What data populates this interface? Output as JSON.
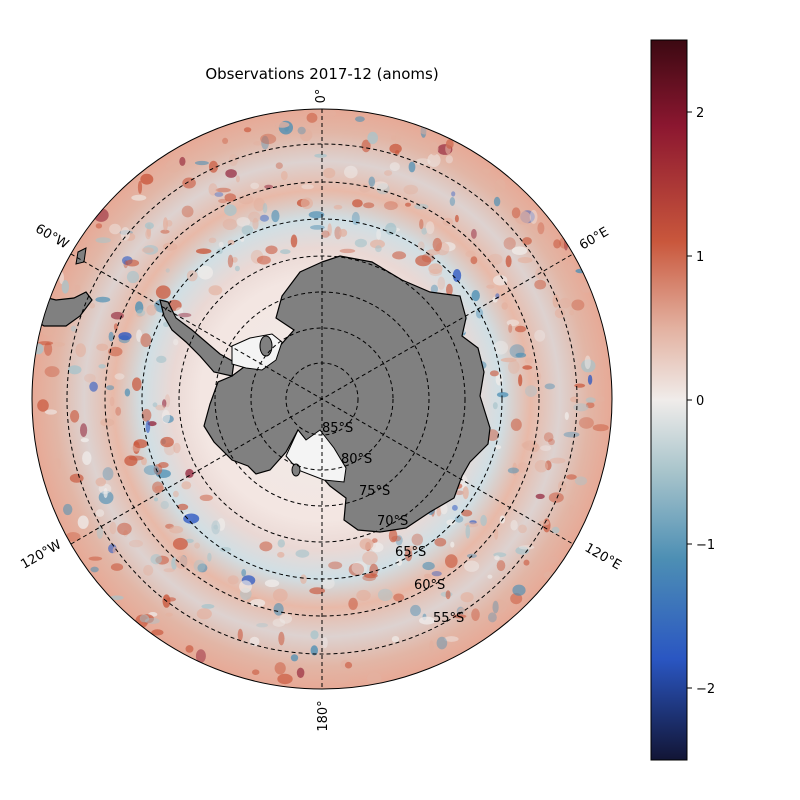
{
  "figure": {
    "title": "Observations 2017-12 (anoms)"
  },
  "map": {
    "projection": "south-polar-stereographic",
    "longitude_labels": [
      "0°",
      "60°E",
      "120°E",
      "180°",
      "120°W",
      "60°W"
    ],
    "latitude_labels": [
      "85°S",
      "80°S",
      "75°S",
      "70°S",
      "65°S",
      "60°S",
      "55°S"
    ],
    "graticule_style": "dashed",
    "land_color": "#808080",
    "ice_shelf_color": "#f4f4f4"
  },
  "colorbar": {
    "colormap": "diverging blue-white-red (balance)",
    "range": [
      -2.5,
      2.5
    ],
    "tick_labels": [
      "2",
      "1",
      "0",
      "−1",
      "−2"
    ],
    "colors": {
      "max": "#3c0912",
      "high": "#8c1730",
      "mid_high": "#c9573c",
      "low_high": "#e3b1a0",
      "zero": "#f0ecea",
      "low_low": "#a8c4cb",
      "mid_low": "#4d8fb4",
      "low": "#2a56c2",
      "min": "#121535"
    }
  }
}
